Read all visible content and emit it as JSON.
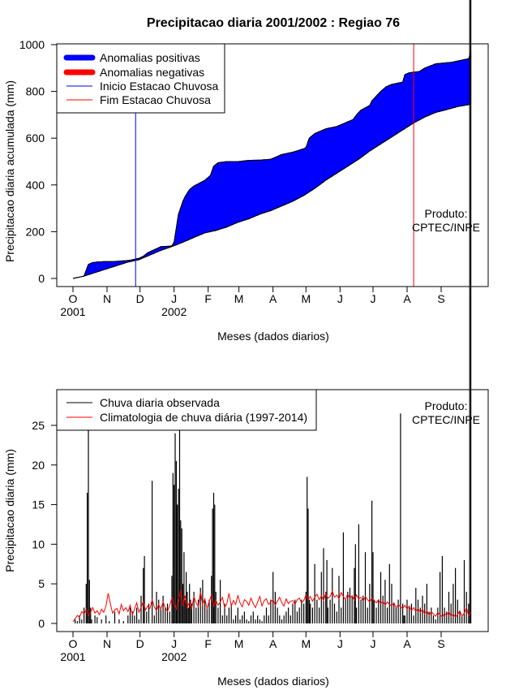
{
  "colors": {
    "positive": "#0000ff",
    "negative": "#ff0000",
    "rain": "#000000",
    "climatology": "#ff0000",
    "onset": "#0000ff",
    "end": "#ff0000"
  },
  "chart_data": [
    {
      "type": "area",
      "title": "Precipitacao diaria 2001/2002 : Regiao 76",
      "xlabel": "Meses (dados diarios)",
      "ylabel": "Precipitacao diaria acumulada (mm)",
      "ylim": [
        0,
        1000
      ],
      "yticks": [
        0,
        200,
        400,
        600,
        800,
        1000
      ],
      "xlim": [
        0,
        365
      ],
      "month_labels": [
        "O",
        "N",
        "D",
        "J",
        "F",
        "M",
        "A",
        "M",
        "J",
        "J",
        "A",
        "S"
      ],
      "month_days": [
        0,
        31,
        61,
        92,
        123,
        151,
        182,
        212,
        243,
        273,
        304,
        335
      ],
      "year_labels": [
        {
          "text": "2001",
          "day": 0
        },
        {
          "text": "2002",
          "day": 92
        }
      ],
      "legend": [
        "Anomalias positivas",
        "Anomalias negativas",
        "Inicio Estacao Chuvosa",
        "Fim Estacao Chuvosa"
      ],
      "product_label": [
        "Produto:",
        "CPTEC/INPE"
      ],
      "onset_day": 57,
      "end_day": 310,
      "observed_cumulative": {
        "day": [
          0,
          10,
          14,
          18,
          22,
          28,
          36,
          42,
          48,
          52,
          56,
          60,
          64,
          68,
          80,
          88,
          90,
          92,
          96,
          100,
          102,
          106,
          110,
          114,
          120,
          125,
          128,
          132,
          140,
          150,
          160,
          170,
          180,
          190,
          195,
          200,
          210,
          212,
          215,
          220,
          230,
          240,
          250,
          255,
          258,
          262,
          270,
          272,
          276,
          280,
          285,
          290,
          300,
          302,
          306,
          315,
          320,
          330,
          345,
          350,
          360,
          362
        ],
        "value": [
          0,
          10,
          60,
          68,
          70,
          72,
          72,
          74,
          76,
          78,
          82,
          86,
          95,
          110,
          136,
          138,
          140,
          155,
          275,
          330,
          350,
          380,
          395,
          405,
          420,
          440,
          480,
          495,
          500,
          500,
          505,
          506,
          510,
          530,
          535,
          540,
          555,
          560,
          600,
          620,
          640,
          650,
          670,
          680,
          700,
          720,
          740,
          760,
          780,
          800,
          820,
          830,
          840,
          872,
          880,
          885,
          900,
          918,
          925,
          930,
          940,
          965
        ]
      },
      "climatology_cumulative": {
        "day": [
          0,
          10,
          30,
          50,
          60,
          70,
          80,
          92,
          100,
          110,
          120,
          130,
          140,
          150,
          160,
          170,
          180,
          190,
          200,
          210,
          220,
          230,
          240,
          250,
          260,
          270,
          280,
          290,
          300,
          310,
          320,
          330,
          340,
          350,
          362
        ],
        "value": [
          0,
          10,
          40,
          70,
          80,
          100,
          120,
          140,
          155,
          175,
          195,
          205,
          220,
          240,
          255,
          275,
          290,
          310,
          330,
          355,
          385,
          420,
          450,
          480,
          510,
          545,
          575,
          605,
          635,
          665,
          690,
          710,
          722,
          735,
          745
        ]
      }
    },
    {
      "type": "bar",
      "xlabel": "Meses (dados diarios)",
      "ylabel": "Precipitacao diaria (mm)",
      "ylim": [
        0,
        29
      ],
      "yticks": [
        0,
        5,
        10,
        15,
        20,
        25
      ],
      "xlim": [
        0,
        365
      ],
      "month_labels": [
        "O",
        "N",
        "D",
        "J",
        "F",
        "M",
        "A",
        "M",
        "J",
        "J",
        "A",
        "S"
      ],
      "month_days": [
        0,
        31,
        61,
        92,
        123,
        151,
        182,
        212,
        243,
        273,
        304,
        335
      ],
      "year_labels": [
        {
          "text": "2001",
          "day": 0
        },
        {
          "text": "2002",
          "day": 92
        }
      ],
      "legend": [
        "Chuva diaria observada",
        "Climatologia de chuva diária (1997-2014)"
      ],
      "product_label": [
        "Produto:",
        "CPTEC/INPE"
      ],
      "observed_daily": {
        "day": [
          2,
          4,
          6,
          8,
          10,
          12,
          13,
          14,
          15,
          16,
          17,
          20,
          22,
          26,
          30,
          33,
          38,
          42,
          46,
          50,
          52,
          54,
          56,
          58,
          60,
          62,
          64,
          65,
          67,
          69,
          72,
          74,
          76,
          78,
          80,
          82,
          84,
          86,
          88,
          90,
          91,
          92,
          93,
          94,
          95,
          96,
          97,
          98,
          99,
          100,
          101,
          102,
          103,
          104,
          105,
          106,
          107,
          108,
          110,
          112,
          114,
          116,
          118,
          120,
          122,
          124,
          126,
          127,
          128,
          129,
          130,
          132,
          134,
          136,
          138,
          140,
          142,
          144,
          146,
          148,
          150,
          152,
          154,
          156,
          158,
          160,
          162,
          164,
          166,
          168,
          170,
          172,
          174,
          176,
          178,
          180,
          182,
          184,
          186,
          188,
          190,
          192,
          194,
          196,
          198,
          200,
          202,
          204,
          206,
          208,
          210,
          212,
          213,
          214,
          215,
          216,
          218,
          220,
          222,
          224,
          226,
          228,
          230,
          231,
          232,
          234,
          236,
          238,
          240,
          242,
          244,
          246,
          248,
          250,
          252,
          254,
          256,
          257,
          258,
          260,
          262,
          264,
          266,
          268,
          270,
          272,
          273,
          274,
          276,
          278,
          280,
          282,
          284,
          286,
          288,
          290,
          292,
          294,
          296,
          298,
          300,
          301,
          302,
          304,
          306,
          308,
          310,
          312,
          314,
          316,
          318,
          320,
          322,
          324,
          326,
          328,
          330,
          332,
          334,
          336,
          338,
          340,
          342,
          344,
          346,
          348,
          350,
          352,
          354,
          356,
          358,
          360,
          361,
          362
        ],
        "value": [
          0.5,
          0.3,
          1,
          0.5,
          2,
          5,
          16.5,
          24.5,
          5.5,
          2,
          0.5,
          1,
          0.8,
          0.5,
          1,
          0.3,
          1.5,
          0.5,
          0.3,
          1,
          2,
          1.5,
          1,
          2,
          0.5,
          3.5,
          7,
          8.5,
          1.5,
          2.5,
          18,
          1,
          4,
          3,
          2,
          3.5,
          2,
          2.5,
          1.5,
          6,
          19,
          17.5,
          24,
          20.5,
          15,
          17,
          24.5,
          13,
          12,
          5,
          9,
          3,
          6.5,
          4,
          2,
          5,
          3,
          2.5,
          4,
          2,
          3,
          4.5,
          5.5,
          3,
          2,
          3,
          6,
          14.5,
          16.5,
          15,
          4,
          2,
          5.5,
          1,
          2.5,
          1,
          2,
          2.5,
          0.5,
          1,
          2,
          0.5,
          1,
          1.5,
          0.5,
          0.3,
          1,
          1.5,
          0.5,
          1,
          0.5,
          0.3,
          1,
          2,
          1,
          3,
          6.5,
          4,
          2,
          1,
          0.5,
          1,
          1.5,
          2,
          1,
          2.5,
          3,
          1.5,
          2,
          3,
          2.5,
          4,
          18.5,
          14.5,
          3,
          2.5,
          2,
          7.5,
          3,
          2,
          6.5,
          9.5,
          4,
          8,
          2,
          3,
          7,
          2.5,
          1.5,
          6,
          2,
          11.5,
          3,
          4,
          4.5,
          3.5,
          7,
          10,
          2,
          12.5,
          3,
          3.5,
          9,
          2,
          5,
          15.5,
          9,
          3,
          2,
          3,
          6.5,
          3.5,
          5.5,
          2,
          7.5,
          5,
          2.5,
          2,
          3,
          26.5,
          2.5,
          1,
          1,
          3,
          2,
          2.5,
          1,
          4.5,
          3,
          2,
          3.5,
          2.5,
          5,
          1.5,
          2,
          1,
          0.5,
          2,
          6.5,
          8.5,
          2,
          1.5,
          4,
          2.5,
          5,
          7,
          3,
          1.5,
          1,
          8,
          4,
          2.5
        ]
      },
      "climatology_daily": {
        "day": [
          0,
          2,
          4,
          6,
          8,
          10,
          12,
          14,
          16,
          18,
          20,
          22,
          24,
          26,
          28,
          30,
          32,
          34,
          36,
          38,
          40,
          42,
          44,
          46,
          48,
          50,
          52,
          54,
          56,
          58,
          60,
          62,
          64,
          66,
          68,
          70,
          72,
          74,
          76,
          78,
          80,
          82,
          84,
          86,
          88,
          90,
          92,
          94,
          96,
          98,
          100,
          102,
          104,
          106,
          108,
          110,
          112,
          114,
          116,
          118,
          120,
          122,
          124,
          126,
          128,
          130,
          132,
          134,
          136,
          138,
          140,
          142,
          144,
          146,
          148,
          150,
          152,
          154,
          156,
          158,
          160,
          162,
          164,
          166,
          168,
          170,
          172,
          174,
          176,
          178,
          180,
          182,
          184,
          186,
          188,
          190,
          192,
          194,
          196,
          198,
          200,
          202,
          204,
          206,
          208,
          210,
          212,
          214,
          216,
          218,
          220,
          222,
          224,
          226,
          228,
          230,
          232,
          234,
          236,
          238,
          240,
          242,
          244,
          246,
          248,
          250,
          252,
          254,
          256,
          258,
          260,
          262,
          264,
          266,
          268,
          270,
          272,
          274,
          276,
          278,
          280,
          282,
          284,
          286,
          288,
          290,
          292,
          294,
          296,
          298,
          300,
          302,
          304,
          306,
          308,
          310,
          312,
          314,
          316,
          318,
          320,
          322,
          324,
          326,
          328,
          330,
          332,
          334,
          336,
          338,
          340,
          342,
          344,
          346,
          348,
          350,
          352,
          354,
          356,
          358,
          360,
          362
        ],
        "value": [
          0.2,
          0.6,
          1.0,
          0.8,
          1.5,
          1.2,
          1.8,
          1.0,
          1.4,
          2.0,
          1.3,
          1.6,
          1.1,
          1.8,
          1.4,
          2.2,
          3.8,
          2.5,
          1.3,
          1.7,
          1.9,
          1.2,
          2.4,
          1.6,
          2.0,
          1.5,
          2.3,
          1.1,
          1.8,
          2.6,
          1.4,
          2.0,
          2.8,
          1.7,
          2.2,
          1.9,
          3.0,
          2.1,
          1.6,
          2.4,
          1.8,
          2.7,
          2.0,
          1.5,
          2.3,
          3.2,
          2.5,
          1.8,
          2.9,
          4.2,
          2.2,
          3.5,
          2.0,
          2.7,
          1.9,
          3.4,
          2.6,
          2.1,
          4.0,
          2.4,
          3.1,
          1.9,
          2.8,
          3.6,
          2.2,
          2.9,
          2.3,
          2.7,
          3.3,
          2.0,
          2.5,
          3.8,
          2.2,
          2.9,
          2.4,
          3.5,
          2.6,
          2.1,
          3.0,
          2.8,
          2.3,
          3.2,
          2.5,
          2.0,
          2.7,
          3.4,
          2.2,
          2.9,
          3.1,
          2.4,
          2.7,
          3.0,
          2.3,
          2.8,
          3.3,
          2.6,
          2.2,
          3.1,
          2.5,
          2.8,
          2.9,
          2.4,
          3.0,
          3.2,
          2.6,
          2.9,
          3.6,
          3.0,
          3.4,
          2.8,
          3.3,
          3.7,
          3.0,
          3.5,
          2.9,
          3.8,
          3.2,
          3.4,
          4.1,
          3.3,
          3.6,
          3.1,
          3.9,
          3.4,
          3.0,
          3.7,
          3.2,
          3.5,
          2.9,
          3.6,
          3.1,
          3.3,
          2.8,
          3.4,
          3.0,
          2.7,
          3.2,
          2.9,
          2.6,
          3.0,
          2.5,
          2.8,
          2.3,
          2.7,
          2.4,
          2.2,
          2.6,
          2.0,
          2.4,
          2.1,
          1.9,
          2.3,
          1.8,
          2.2,
          1.6,
          2.0,
          1.5,
          1.9,
          1.4,
          1.8,
          1.2,
          1.6,
          1.0,
          1.5,
          1.2,
          0.9,
          1.4,
          1.1,
          0.8,
          1.3,
          1.0,
          1.5,
          0.9,
          1.2,
          0.8,
          1.1,
          1.6,
          0.9,
          1.3,
          2.0,
          1.0,
          1.4,
          0.6
        ]
      }
    }
  ]
}
